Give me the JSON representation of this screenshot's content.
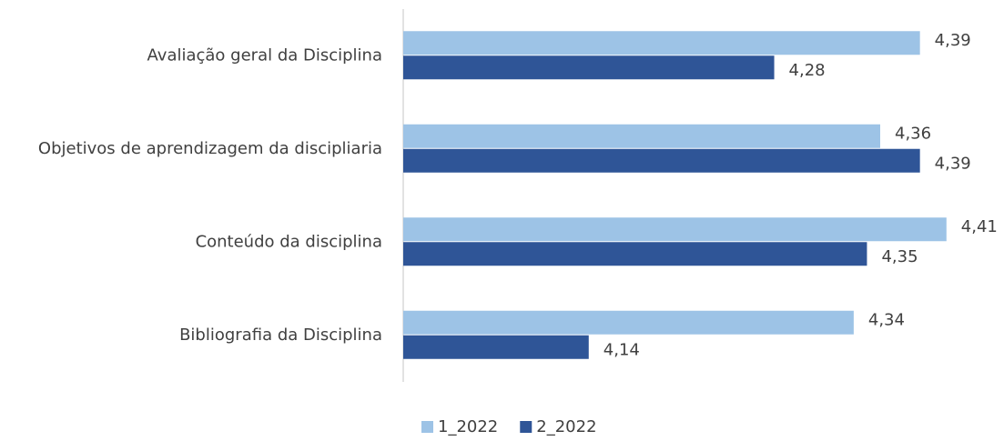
{
  "chart_data": {
    "type": "bar",
    "orientation": "horizontal",
    "categories": [
      "Avaliação geral da Disciplina",
      "Objetivos de aprendizagem da discipliaria",
      "Conteúdo da disciplina",
      "Bibliografia da Disciplina"
    ],
    "series": [
      {
        "name": "1_2022",
        "color": "#9dc3e6",
        "values": [
          4.39,
          4.36,
          4.41,
          4.34
        ],
        "value_labels": [
          "4,39",
          "4,36",
          "4,41",
          "4,34"
        ]
      },
      {
        "name": "2_2022",
        "color": "#2f5597",
        "values": [
          4.28,
          4.39,
          4.35,
          4.14
        ],
        "value_labels": [
          "4,28",
          "4,39",
          "4,35",
          "4,14"
        ]
      }
    ],
    "xlim": [
      4.0,
      4.45
    ],
    "legend": "bottom"
  }
}
